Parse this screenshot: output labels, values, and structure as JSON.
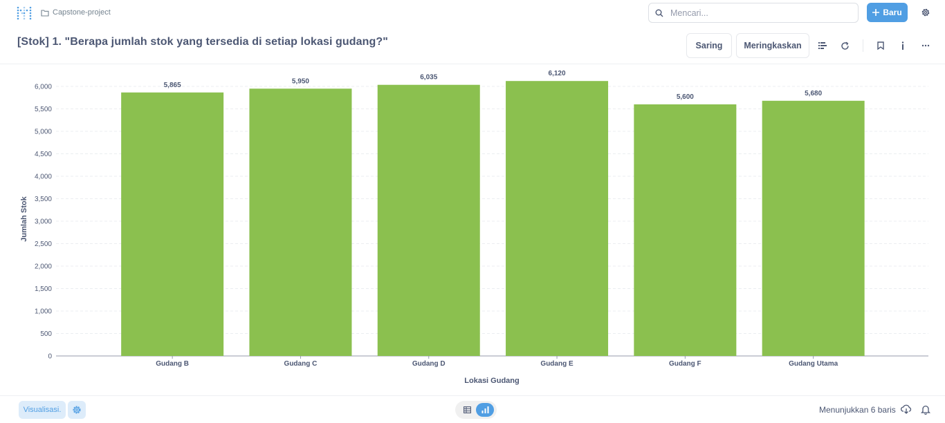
{
  "nav": {
    "breadcrumb": "Capstone-project",
    "search_placeholder": "Mencari...",
    "new_label": "Baru"
  },
  "header": {
    "title": "[Stok] 1. \"Berapa jumlah stok yang tersedia di setiap lokasi gudang?\"",
    "filter_label": "Saring",
    "summarize_label": "Meringkaskan"
  },
  "footer": {
    "visualization_label": "Visualisasi.",
    "row_count": "Menunjukkan 6 baris"
  },
  "colors": {
    "accent": "#509ee3",
    "bar": "#8bc04f",
    "text": "#4c5773"
  },
  "chart_data": {
    "type": "bar",
    "categories": [
      "Gudang B",
      "Gudang C",
      "Gudang D",
      "Gudang E",
      "Gudang F",
      "Gudang Utama"
    ],
    "values": [
      5865,
      5950,
      6035,
      6120,
      5600,
      5680
    ],
    "value_labels": [
      "5,865",
      "5,950",
      "6,035",
      "6,120",
      "5,600",
      "5,680"
    ],
    "xlabel": "Lokasi Gudang",
    "ylabel": "Jumlah Stok",
    "ylim": [
      0,
      6000
    ],
    "yticks": [
      0,
      500,
      1000,
      1500,
      2000,
      2500,
      3000,
      3500,
      4000,
      4500,
      5000,
      5500,
      6000
    ],
    "ytick_labels": [
      "0",
      "500",
      "1,000",
      "1,500",
      "2,000",
      "2,500",
      "3,000",
      "3,500",
      "4,000",
      "4,500",
      "5,000",
      "5,500",
      "6,000"
    ],
    "grid": true
  }
}
